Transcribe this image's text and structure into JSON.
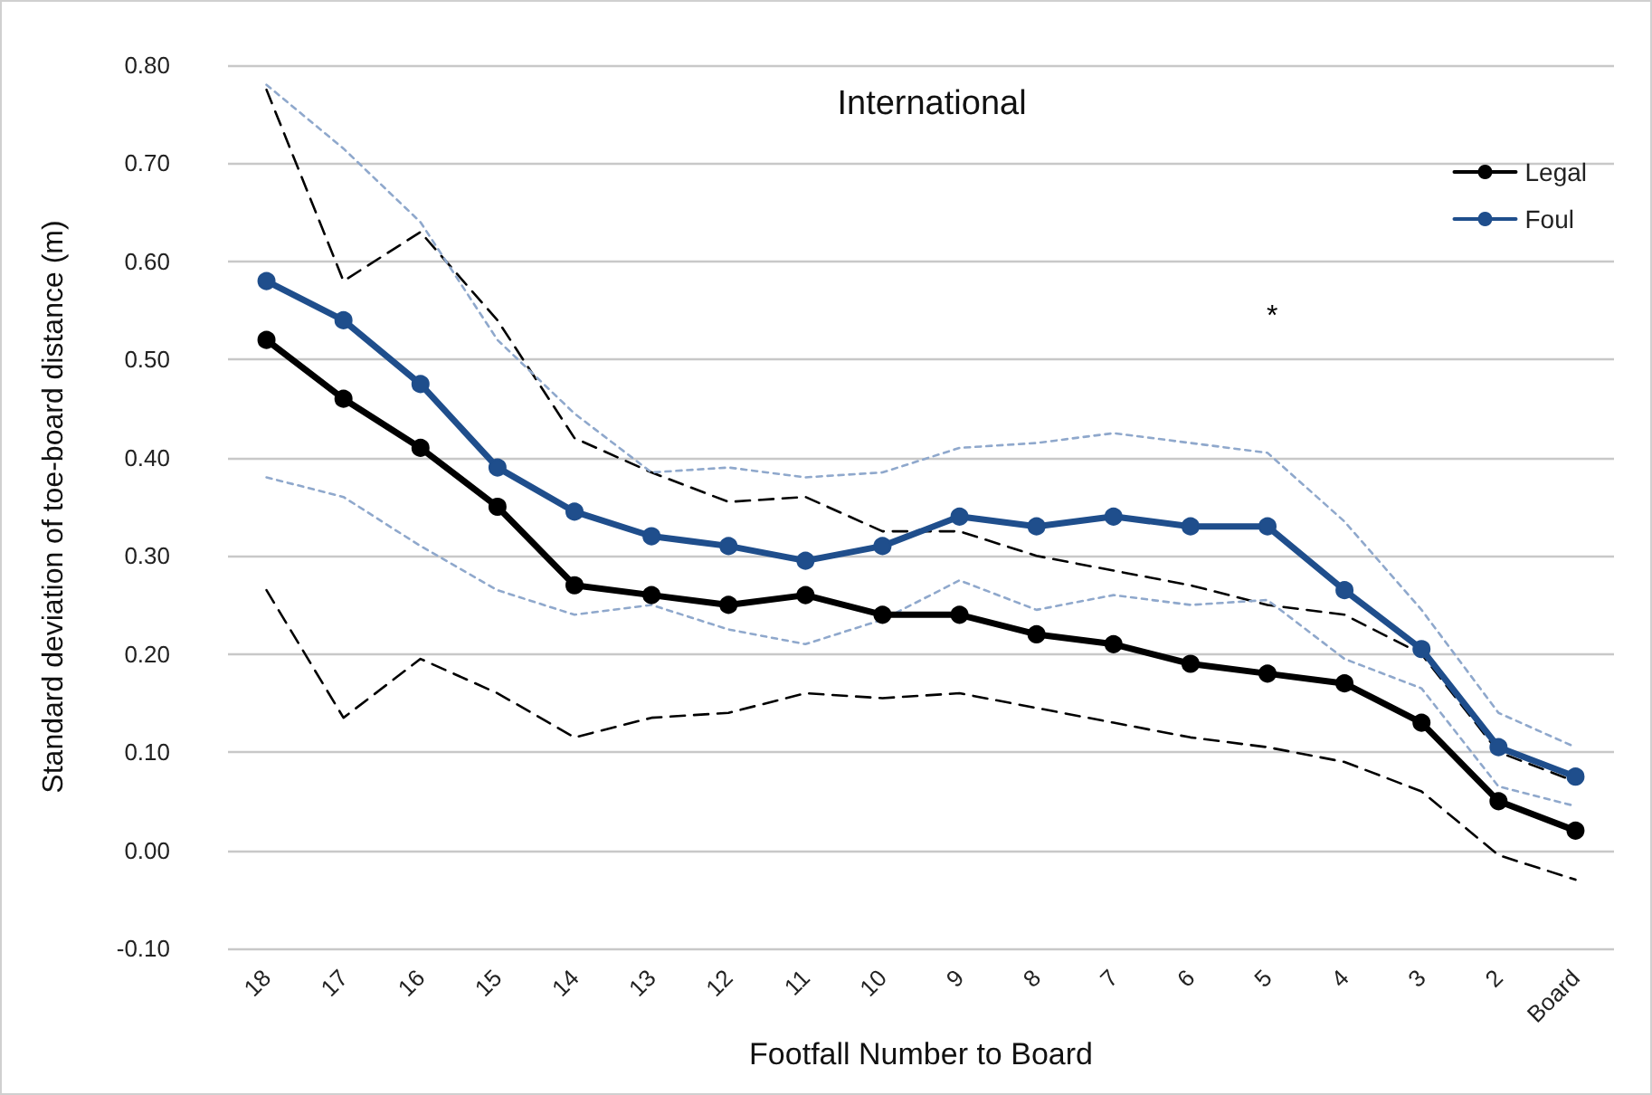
{
  "chart_data": {
    "type": "line",
    "title": "International",
    "xlabel": "Footfall Number to Board",
    "ylabel": "Standard deviation of toe-board distance (m)",
    "categories": [
      "18",
      "17",
      "16",
      "15",
      "14",
      "13",
      "12",
      "11",
      "10",
      "9",
      "8",
      "7",
      "6",
      "5",
      "4",
      "3",
      "2",
      "Board"
    ],
    "series": [
      {
        "name": "Legal",
        "color": "#000000",
        "marker": "circle",
        "line_style": "solid",
        "values": [
          0.52,
          0.46,
          0.41,
          0.35,
          0.27,
          0.26,
          0.25,
          0.26,
          0.24,
          0.24,
          0.22,
          0.21,
          0.19,
          0.18,
          0.17,
          0.13,
          0.05,
          0.02
        ]
      },
      {
        "name": "Foul",
        "color": "#1f4e8c",
        "marker": "circle",
        "line_style": "solid",
        "values": [
          0.58,
          0.54,
          0.475,
          0.39,
          0.345,
          0.32,
          0.31,
          0.295,
          0.31,
          0.34,
          0.33,
          0.34,
          0.33,
          0.33,
          0.265,
          0.205,
          0.105,
          0.075
        ]
      },
      {
        "color": "#000000",
        "marker": "none",
        "line_style": "dashed",
        "values": [
          0.775,
          0.58,
          0.63,
          0.54,
          0.42,
          0.385,
          0.355,
          0.36,
          0.325,
          0.325,
          0.3,
          0.285,
          0.27,
          0.25,
          0.24,
          0.2,
          0.1,
          0.07
        ]
      },
      {
        "color": "#000000",
        "marker": "none",
        "line_style": "dashed",
        "values": [
          0.265,
          0.135,
          0.195,
          0.16,
          0.115,
          0.135,
          0.14,
          0.16,
          0.155,
          0.16,
          0.145,
          0.13,
          0.115,
          0.105,
          0.09,
          0.06,
          -0.005,
          -0.03
        ]
      },
      {
        "color": "#8fa8cc",
        "marker": "none",
        "line_style": "dotted",
        "values": [
          0.78,
          0.715,
          0.64,
          0.52,
          0.445,
          0.385,
          0.39,
          0.38,
          0.385,
          0.41,
          0.415,
          0.425,
          0.415,
          0.405,
          0.335,
          0.245,
          0.14,
          0.105
        ]
      },
      {
        "color": "#8fa8cc",
        "marker": "none",
        "line_style": "dotted",
        "values": [
          0.38,
          0.36,
          0.31,
          0.265,
          0.24,
          0.25,
          0.225,
          0.21,
          0.235,
          0.275,
          0.245,
          0.26,
          0.25,
          0.255,
          0.195,
          0.165,
          0.065,
          0.045
        ]
      }
    ],
    "ylim": [
      -0.1,
      0.8
    ],
    "yticks": [
      {
        "value": -0.1,
        "label": "-0.10"
      },
      {
        "value": 0,
        "label": "0.00"
      },
      {
        "value": 0.1,
        "label": "0.10"
      },
      {
        "value": 0.2,
        "label": "0.20"
      },
      {
        "value": 0.3,
        "label": "0.30"
      },
      {
        "value": 0.4,
        "label": "0.40"
      },
      {
        "value": 0.5,
        "label": "0.50"
      },
      {
        "value": 0.6,
        "label": "0.60"
      },
      {
        "value": 0.7,
        "label": "0.70"
      },
      {
        "value": 0.8,
        "label": "0.80"
      }
    ],
    "grid": "y",
    "legend": "top right",
    "annotations": [
      "*"
    ]
  }
}
